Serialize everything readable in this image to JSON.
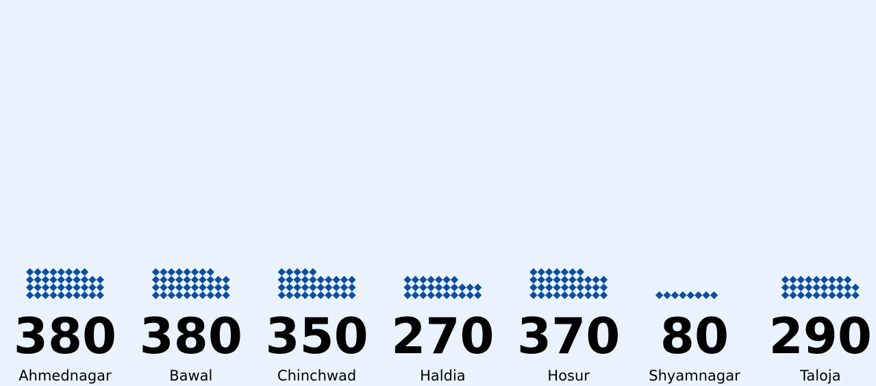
{
  "chart_data": {
    "type": "bar",
    "categories": [
      "Ahmednagar",
      "Bawal",
      "Chinchwad",
      "Haldia",
      "Hosur",
      "Shyamnagar",
      "Taloja"
    ],
    "values": [
      380,
      380,
      350,
      270,
      370,
      80,
      290
    ],
    "color": "#0b4f9e"
  }
}
